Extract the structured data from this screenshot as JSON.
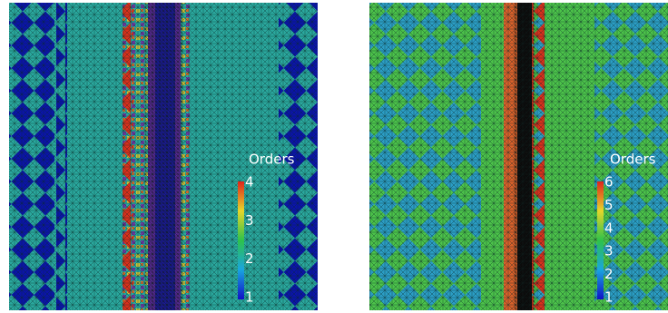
{
  "panels": [
    {
      "colorbar": {
        "title": "Orders",
        "ticks": [
          1,
          2,
          3,
          4
        ]
      }
    },
    {
      "colorbar": {
        "title": "Orders",
        "ticks": [
          1,
          2,
          3,
          4,
          5,
          6
        ]
      }
    }
  ]
}
